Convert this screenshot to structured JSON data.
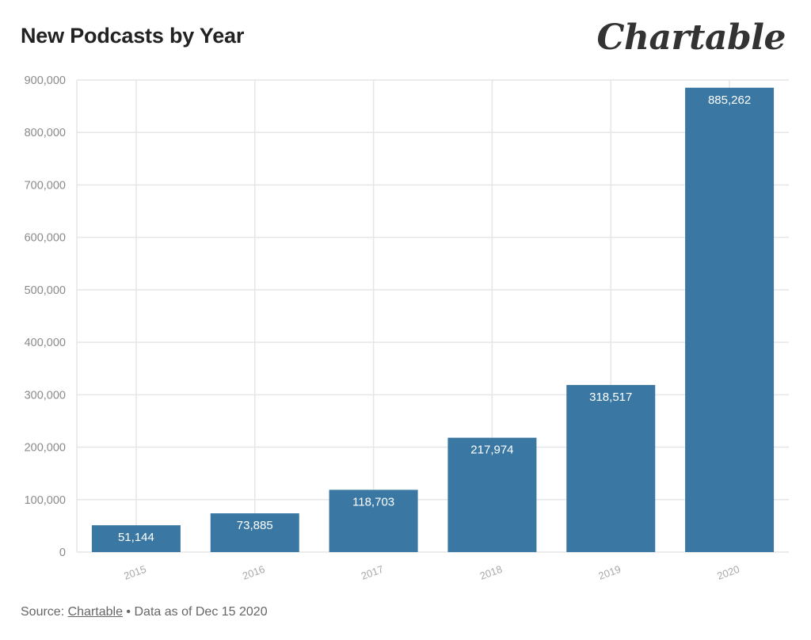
{
  "header": {
    "title": "New Podcasts by Year",
    "logo_text": "Chartable"
  },
  "footer": {
    "source_prefix": "Source:",
    "source_link": "Chartable",
    "separator": "•",
    "data_note": "Data as of Dec 15 2020"
  },
  "colors": {
    "bar": "#3a78a3",
    "grid": "#e6e6e6",
    "axis_text": "#8a8a8a",
    "label_text": "#ffffff"
  },
  "chart_data": {
    "type": "bar",
    "title": "New Podcasts by Year",
    "categories": [
      "2015",
      "2016",
      "2017",
      "2018",
      "2019",
      "2020"
    ],
    "values": [
      51144,
      73885,
      118703,
      217974,
      318517,
      885262
    ],
    "value_labels": [
      "51,144",
      "73,885",
      "118,703",
      "217,974",
      "318,517",
      "885,262"
    ],
    "yticks": [
      0,
      100000,
      200000,
      300000,
      400000,
      500000,
      600000,
      700000,
      800000,
      900000
    ],
    "ytick_labels": [
      "0",
      "100,000",
      "200,000",
      "300,000",
      "400,000",
      "500,000",
      "600,000",
      "700,000",
      "800,000",
      "900,000"
    ],
    "ylim": [
      0,
      900000
    ],
    "xlabel": "",
    "ylabel": "",
    "grid": true
  }
}
